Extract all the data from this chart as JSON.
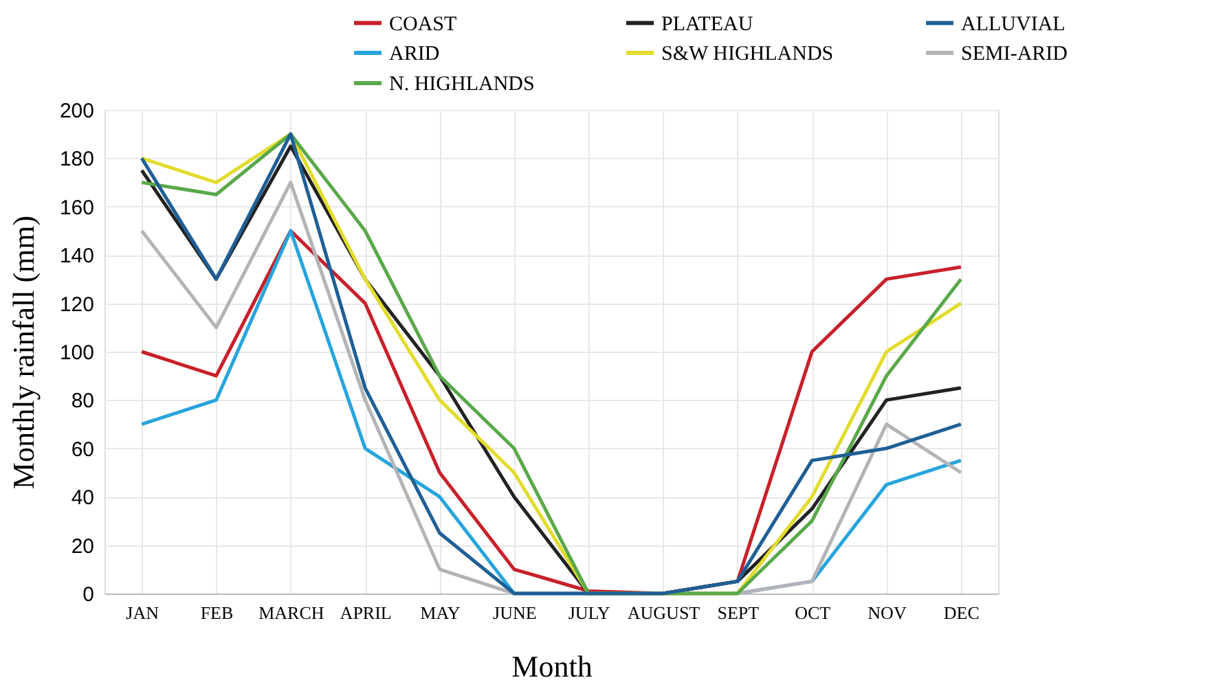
{
  "chart_data": {
    "type": "line",
    "xlabel": "Month",
    "ylabel": "Monthly rainfall (mm)",
    "categories": [
      "JAN",
      "FEB",
      "MARCH",
      "APRIL",
      "MAY",
      "JUNE",
      "JULY",
      "AUGUST",
      "SEPT",
      "OCT",
      "NOV",
      "DEC"
    ],
    "ylim": [
      0,
      200
    ],
    "yticks": [
      0,
      20,
      40,
      60,
      80,
      100,
      120,
      140,
      160,
      180,
      200
    ],
    "grid": true,
    "legend": "top",
    "marker": "none",
    "line_style": "solid",
    "series": [
      {
        "name": "COAST",
        "color": "#c8202a",
        "values": [
          100,
          90,
          150,
          120,
          50,
          10,
          1,
          0,
          5,
          100,
          130,
          135
        ]
      },
      {
        "name": "ARID",
        "color": "#27a4dc",
        "values": [
          70,
          80,
          150,
          60,
          40,
          0,
          0,
          0,
          0,
          5,
          45,
          55
        ]
      },
      {
        "name": "SEMI-ARID",
        "color": "#b4b4b8",
        "values": [
          150,
          110,
          170,
          80,
          10,
          0,
          0,
          0,
          0,
          5,
          70,
          50
        ]
      },
      {
        "name": "PLATEAU",
        "color": "#222222",
        "values": [
          175,
          130,
          185,
          130,
          90,
          40,
          0,
          0,
          5,
          35,
          80,
          85
        ]
      },
      {
        "name": "S&W HIGHLANDS",
        "color": "#e2dc2c",
        "values": [
          180,
          170,
          190,
          130,
          80,
          50,
          0,
          0,
          0,
          40,
          100,
          120
        ]
      },
      {
        "name": "N. HIGHLANDS",
        "color": "#5aa84a",
        "values": [
          170,
          165,
          190,
          150,
          90,
          60,
          0,
          0,
          0,
          30,
          90,
          130
        ]
      },
      {
        "name": "ALLUVIAL",
        "color": "#1f5f96",
        "values": [
          180,
          130,
          190,
          85,
          25,
          0,
          0,
          0,
          5,
          55,
          60,
          70
        ]
      }
    ]
  }
}
